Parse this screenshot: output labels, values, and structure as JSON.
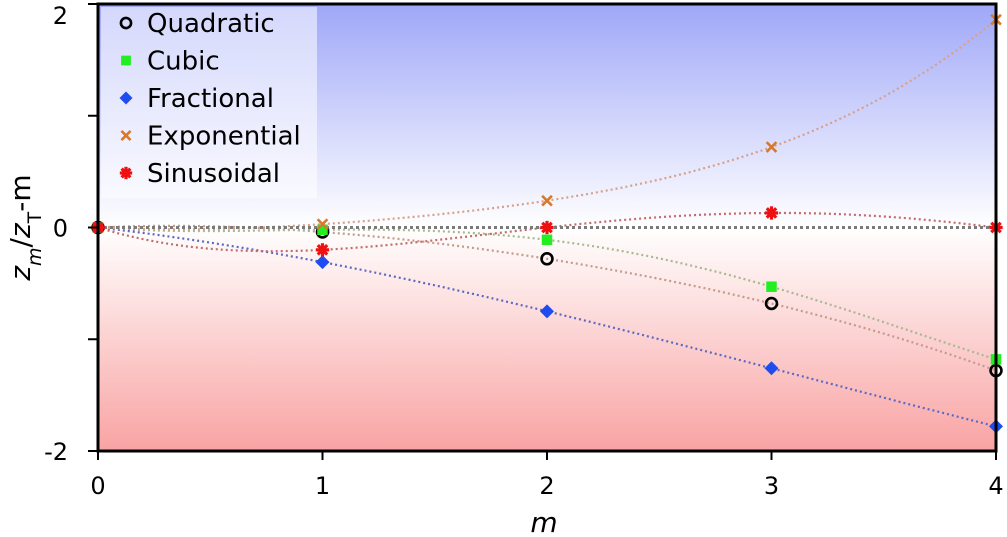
{
  "chart_data": {
    "type": "scatter",
    "x_label": "m",
    "y_label": {
      "z1": "z",
      "sub1": "m",
      "slash": "/",
      "z2": "z",
      "sub2": "T",
      "tail": "-m"
    },
    "xlim": [
      0,
      4
    ],
    "ylim": [
      -2,
      2
    ],
    "x_ticks": [
      0,
      1,
      2,
      3,
      4
    ],
    "x_tick_labels": [
      "0",
      "1",
      "2",
      "3",
      "4"
    ],
    "y_ticks": [
      -2,
      0,
      2
    ],
    "y_tick_labels": [
      "-2",
      "0",
      "2"
    ],
    "legend_position": "top-left",
    "background": {
      "top_color": "#9fa7f8",
      "mid_color": "#ffffff",
      "bottom_color": "#f9a3a3"
    },
    "zero_line_color": "#7a7a7a",
    "series": [
      {
        "name": "Quadratic",
        "marker": "circle",
        "color": "#000000",
        "fit_color": "#c49a8a",
        "x": [
          0,
          1,
          2,
          3,
          4
        ],
        "y": [
          0,
          -0.04,
          -0.28,
          -0.68,
          -1.28
        ]
      },
      {
        "name": "Cubic",
        "marker": "square",
        "color": "#22ee22",
        "fit_color": "#a8b890",
        "x": [
          0,
          1,
          2,
          3,
          4
        ],
        "y": [
          0,
          -0.02,
          -0.11,
          -0.53,
          -1.18
        ]
      },
      {
        "name": "Fractional",
        "marker": "diamond",
        "color": "#1f4cf0",
        "fit_color": "#5c69c4",
        "x": [
          0,
          1,
          2,
          3,
          4
        ],
        "y": [
          0,
          -0.31,
          -0.75,
          -1.26,
          -1.78
        ]
      },
      {
        "name": "Exponential",
        "marker": "x",
        "color": "#d9782d",
        "fit_color": "#d7a08a",
        "x": [
          0,
          1,
          2,
          3,
          4
        ],
        "y": [
          0,
          0.03,
          0.24,
          0.72,
          1.86
        ]
      },
      {
        "name": "Sinusoidal",
        "marker": "star",
        "color": "#ee1111",
        "fit_color": "#c46a6a",
        "x": [
          0,
          1,
          2,
          3,
          4
        ],
        "y": [
          0,
          -0.2,
          0,
          0.13,
          0
        ]
      }
    ]
  }
}
